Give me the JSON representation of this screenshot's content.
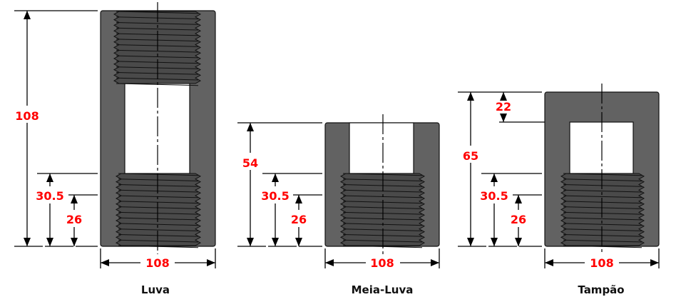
{
  "parts": [
    {
      "name": "Luva",
      "height_label": "108",
      "thread_depth_label": "30.5",
      "thread_length_label": "26",
      "width_label": "108"
    },
    {
      "name": "Meia-Luva",
      "height_label": "54",
      "thread_depth_label": "30.5",
      "thread_length_label": "26",
      "width_label": "108"
    },
    {
      "name": "Tampão",
      "height_label": "65",
      "top_thickness_label": "22",
      "thread_depth_label": "30.5",
      "thread_length_label": "26",
      "width_label": "108"
    }
  ],
  "colors": {
    "body": "#626262",
    "thread": "#4a4a4a",
    "outline": "#111111",
    "dimension_text": "#ff0000"
  }
}
